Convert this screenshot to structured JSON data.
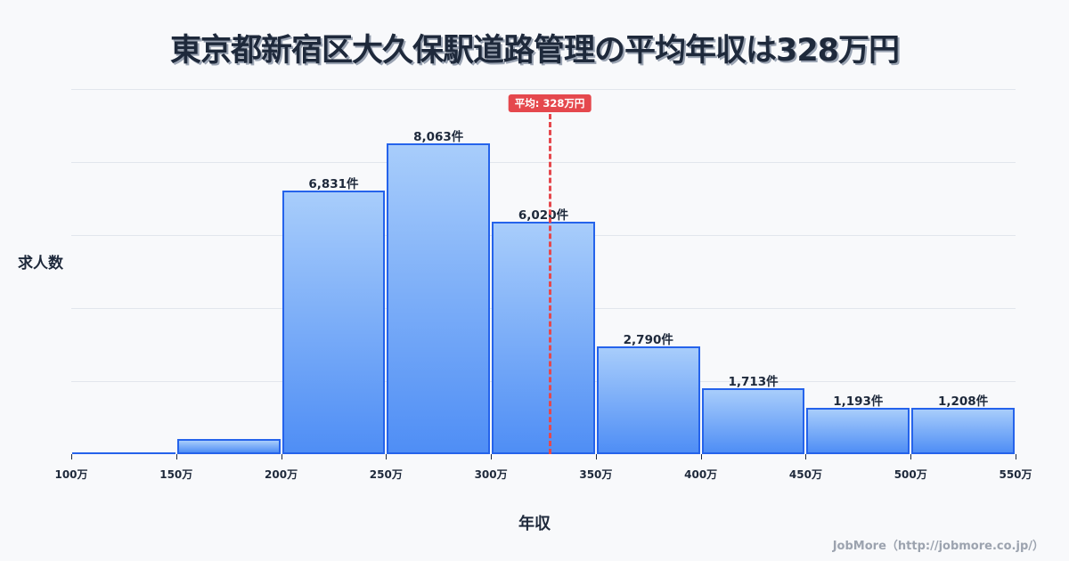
{
  "title": "東京都新宿区大久保駅道路管理の平均年収は328万円",
  "axis": {
    "ylabel": "求人数",
    "xlabel": "年収"
  },
  "credit": "JobMore（http://jobmore.co.jp/）",
  "mean": {
    "value": 328,
    "label": "平均: 328万円",
    "color": "#e5484d"
  },
  "colors": {
    "bar_border": "#2563eb",
    "bar_top": "#a8cdfb",
    "bar_bottom": "#4f8ef5",
    "background": "#f8f9fb"
  },
  "chart_data": {
    "type": "bar",
    "title": "東京都新宿区大久保駅道路管理の平均年収は328万円",
    "xlabel": "年収",
    "ylabel": "求人数",
    "bins": [
      {
        "from": 100,
        "to": 150,
        "value": 20,
        "label": ""
      },
      {
        "from": 150,
        "to": 200,
        "value": 390,
        "label": ""
      },
      {
        "from": 200,
        "to": 250,
        "value": 6831,
        "label": "6,831件"
      },
      {
        "from": 250,
        "to": 300,
        "value": 8063,
        "label": "8,063件"
      },
      {
        "from": 300,
        "to": 350,
        "value": 6020,
        "label": "6,020件"
      },
      {
        "from": 350,
        "to": 400,
        "value": 2790,
        "label": "2,790件"
      },
      {
        "from": 400,
        "to": 450,
        "value": 1713,
        "label": "1,713件"
      },
      {
        "from": 450,
        "to": 500,
        "value": 1193,
        "label": "1,193件"
      },
      {
        "from": 500,
        "to": 550,
        "value": 1208,
        "label": "1,208件"
      }
    ],
    "categories": [
      "100-150万",
      "150-200万",
      "200-250万",
      "250-300万",
      "300-350万",
      "350-400万",
      "400-450万",
      "450-500万",
      "500-550万"
    ],
    "values": [
      20,
      390,
      6831,
      8063,
      6020,
      2790,
      1713,
      1193,
      1208
    ],
    "x_ticks": [
      "100万",
      "150万",
      "200万",
      "250万",
      "300万",
      "350万",
      "400万",
      "450万",
      "500万",
      "550万"
    ],
    "xlim": [
      100,
      550
    ],
    "ylim": [
      0,
      9460
    ],
    "grid": true,
    "gridlines": 5,
    "mean_line": {
      "x": 328,
      "label": "平均: 328万円"
    },
    "legend": "none"
  }
}
